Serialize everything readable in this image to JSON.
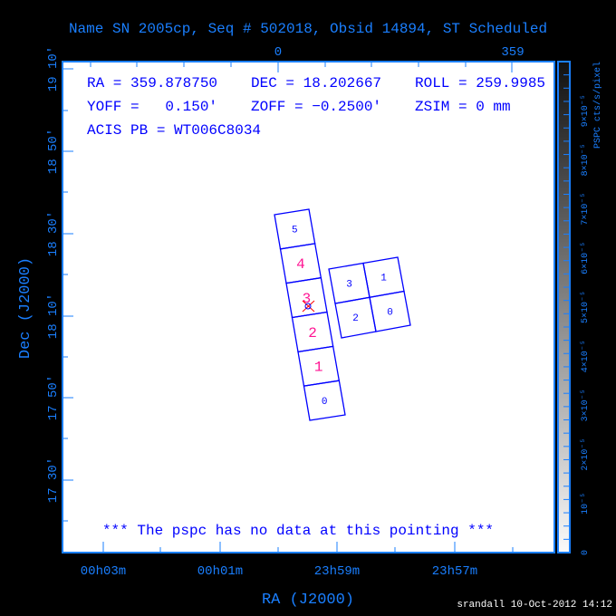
{
  "title": "Name SN 2005cp, Seq # 502018, Obsid 14894, ST Scheduled",
  "info": {
    "ra": "RA = 359.878750",
    "dec": "DEC = 18.202667",
    "roll": "ROLL = 259.9985",
    "yoff": "YOFF =   0.150′",
    "zoff": "ZOFF = −0.2500′",
    "zsim": "ZSIM = 0 mm",
    "acis_pb": "ACIS PB = WT006C8034"
  },
  "message": "*** The pspc has no data at this pointing ***",
  "x_axis": {
    "label": "RA (J2000)",
    "ticks": [
      "00h03m",
      "00h01m",
      "23h59m",
      "23h57m"
    ]
  },
  "y_axis": {
    "label": "Dec (J2000)",
    "ticks": [
      "19 10′",
      "18 50′",
      "18 30′",
      "18 10′",
      "17 50′",
      "17 30′"
    ]
  },
  "top_axis": {
    "ticks": [
      "0",
      "359"
    ]
  },
  "colorbar": {
    "label": "PSPC cts/s/pixel",
    "ticks": [
      "0",
      "10⁻⁵",
      "2×10⁻⁵",
      "3×10⁻⁵",
      "4×10⁻⁵",
      "5×10⁻⁵",
      "6×10⁻⁵",
      "7×10⁻⁵",
      "8×10⁻⁵",
      "9×10⁻⁵"
    ],
    "range": [
      0,
      0.0001
    ]
  },
  "footer": "srandall 10-Oct-2012 14:12",
  "colors": {
    "axis": "#1a7fff",
    "chip_outline": "#0000ff",
    "chip_active": "#ff1493",
    "chip_inactive": "#0000ff",
    "aimpoint": "#ff0000"
  },
  "chart_data": {
    "type": "scatter",
    "title": "Name SN 2005cp, Seq # 502018, Obsid 14894, ST Scheduled",
    "xlabel": "RA (J2000)",
    "ylabel": "Dec (J2000)",
    "acis_s_chips": [
      {
        "id": "5",
        "active": false
      },
      {
        "id": "4",
        "active": true
      },
      {
        "id": "3",
        "active": true
      },
      {
        "id": "2",
        "active": true
      },
      {
        "id": "1",
        "active": true
      },
      {
        "id": "0",
        "active": false
      }
    ],
    "acis_i_chips": [
      {
        "id": "3",
        "active": false
      },
      {
        "id": "1",
        "active": false
      },
      {
        "id": "2",
        "active": false
      },
      {
        "id": "0",
        "active": false
      }
    ],
    "aimpoint": {
      "ra": 359.87875,
      "dec": 18.202667
    }
  }
}
